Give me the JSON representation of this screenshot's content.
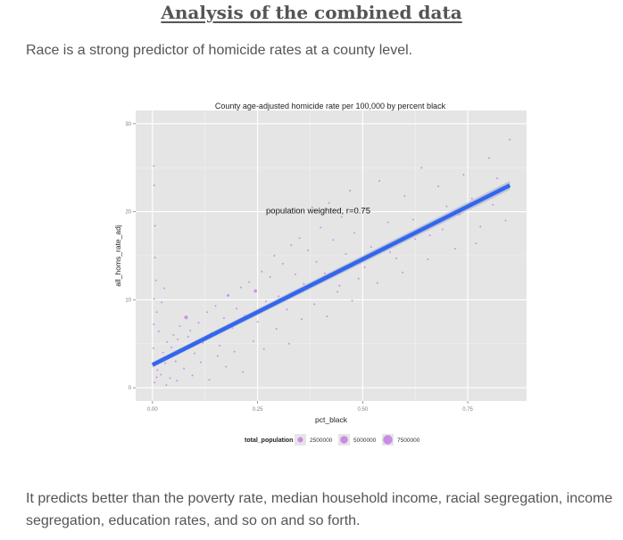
{
  "article": {
    "heading": "Analysis of the combined data",
    "intro": "Race is a strong predictor of homicide rates at a county level.",
    "outro": "It predicts better than the poverty rate, median household income, racial segregation, income segregation, education rates, and so on and so forth."
  },
  "chart_data": {
    "type": "scatter",
    "title": "County age-adjusted homicide rate per 100,000 by percent black",
    "xlabel": "pct_black",
    "ylabel": "all_homs_rate_adj",
    "xlim": [
      -0.04,
      0.89
    ],
    "ylim": [
      -1.5,
      31.5
    ],
    "x_ticks": [
      0.0,
      0.25,
      0.5,
      0.75
    ],
    "x_tick_labels": [
      "0.00",
      "0.25",
      "0.50",
      "0.75"
    ],
    "y_ticks": [
      0,
      10,
      20,
      30
    ],
    "y_tick_labels": [
      "0",
      "10",
      "20",
      "30"
    ],
    "grid": true,
    "background": "#e5e5e5",
    "point_color": "#b44ee6",
    "fit_color": "#3366ee",
    "annotation": {
      "text": "population weighted, r=0.75",
      "x": 0.27,
      "y": 19.8
    },
    "fit_line": {
      "x": [
        0.0,
        0.85
      ],
      "y": [
        2.6,
        23.0
      ]
    },
    "legend": {
      "title": "total_population",
      "position": "bottom",
      "entries": [
        {
          "label": "2500000",
          "size": 2500000
        },
        {
          "label": "5000000",
          "size": 5000000
        },
        {
          "label": "7500000",
          "size": 7500000
        }
      ]
    },
    "points": [
      [
        0.005,
        0.6,
        30000
      ],
      [
        0.01,
        1.2,
        25000
      ],
      [
        0.012,
        2.0,
        40000
      ],
      [
        0.018,
        3.1,
        60000
      ],
      [
        0.02,
        1.5,
        20000
      ],
      [
        0.025,
        4.0,
        50000
      ],
      [
        0.03,
        2.8,
        80000
      ],
      [
        0.035,
        5.2,
        30000
      ],
      [
        0.04,
        3.5,
        100000
      ],
      [
        0.045,
        4.6,
        45000
      ],
      [
        0.05,
        6.0,
        35000
      ],
      [
        0.055,
        3.0,
        70000
      ],
      [
        0.06,
        5.5,
        120000
      ],
      [
        0.065,
        7.0,
        40000
      ],
      [
        0.07,
        4.2,
        90000
      ],
      [
        0.08,
        8.0,
        1200000
      ],
      [
        0.085,
        5.8,
        60000
      ],
      [
        0.09,
        6.5,
        150000
      ],
      [
        0.1,
        3.9,
        50000
      ],
      [
        0.11,
        7.4,
        75000
      ],
      [
        0.12,
        5.1,
        95000
      ],
      [
        0.13,
        8.6,
        40000
      ],
      [
        0.14,
        6.2,
        65000
      ],
      [
        0.15,
        9.3,
        55000
      ],
      [
        0.16,
        4.8,
        30000
      ],
      [
        0.17,
        7.9,
        85000
      ],
      [
        0.18,
        10.5,
        600000
      ],
      [
        0.19,
        6.8,
        45000
      ],
      [
        0.2,
        9.0,
        70000
      ],
      [
        0.21,
        11.4,
        35000
      ],
      [
        0.22,
        8.2,
        110000
      ],
      [
        0.23,
        12.0,
        50000
      ],
      [
        0.245,
        11.0,
        900000
      ],
      [
        0.25,
        7.5,
        40000
      ],
      [
        0.26,
        13.2,
        60000
      ],
      [
        0.27,
        9.8,
        75000
      ],
      [
        0.28,
        12.6,
        30000
      ],
      [
        0.29,
        15.0,
        45000
      ],
      [
        0.3,
        10.4,
        90000
      ],
      [
        0.31,
        14.1,
        55000
      ],
      [
        0.32,
        8.9,
        35000
      ],
      [
        0.33,
        16.2,
        40000
      ],
      [
        0.34,
        12.9,
        65000
      ],
      [
        0.35,
        17.0,
        30000
      ],
      [
        0.36,
        11.8,
        80000
      ],
      [
        0.37,
        15.6,
        50000
      ],
      [
        0.38,
        20.5,
        45000
      ],
      [
        0.39,
        14.3,
        35000
      ],
      [
        0.4,
        18.2,
        60000
      ],
      [
        0.41,
        13.0,
        40000
      ],
      [
        0.42,
        21.0,
        55000
      ],
      [
        0.43,
        16.8,
        30000
      ],
      [
        0.44,
        10.9,
        70000
      ],
      [
        0.45,
        19.4,
        45000
      ],
      [
        0.46,
        15.2,
        35000
      ],
      [
        0.47,
        22.4,
        50000
      ],
      [
        0.48,
        17.6,
        40000
      ],
      [
        0.49,
        12.4,
        30000
      ],
      [
        0.5,
        20.1,
        60000
      ],
      [
        0.52,
        16.0,
        35000
      ],
      [
        0.54,
        23.5,
        25000
      ],
      [
        0.56,
        18.8,
        45000
      ],
      [
        0.58,
        14.7,
        30000
      ],
      [
        0.6,
        21.8,
        40000
      ],
      [
        0.62,
        19.1,
        35000
      ],
      [
        0.64,
        25.0,
        20000
      ],
      [
        0.66,
        17.3,
        30000
      ],
      [
        0.68,
        22.9,
        25000
      ],
      [
        0.7,
        20.6,
        35000
      ],
      [
        0.72,
        15.8,
        30000
      ],
      [
        0.74,
        24.2,
        25000
      ],
      [
        0.76,
        21.5,
        20000
      ],
      [
        0.78,
        18.3,
        30000
      ],
      [
        0.8,
        26.1,
        20000
      ],
      [
        0.82,
        23.8,
        25000
      ],
      [
        0.85,
        28.2,
        20000
      ],
      [
        0.002,
        4.5,
        20000
      ],
      [
        0.003,
        7.2,
        15000
      ],
      [
        0.004,
        10.1,
        25000
      ],
      [
        0.006,
        14.8,
        15000
      ],
      [
        0.004,
        23.0,
        10000
      ],
      [
        0.003,
        25.2,
        10000
      ],
      [
        0.006,
        18.4,
        15000
      ],
      [
        0.008,
        12.2,
        20000
      ],
      [
        0.01,
        8.6,
        30000
      ],
      [
        0.015,
        6.4,
        20000
      ],
      [
        0.022,
        9.7,
        25000
      ],
      [
        0.028,
        11.3,
        20000
      ],
      [
        0.033,
        0.3,
        15000
      ],
      [
        0.042,
        1.1,
        20000
      ],
      [
        0.058,
        0.8,
        25000
      ],
      [
        0.075,
        2.2,
        30000
      ],
      [
        0.095,
        1.4,
        20000
      ],
      [
        0.115,
        2.9,
        25000
      ],
      [
        0.135,
        0.9,
        15000
      ],
      [
        0.155,
        3.6,
        20000
      ],
      [
        0.175,
        2.4,
        25000
      ],
      [
        0.195,
        4.1,
        20000
      ],
      [
        0.215,
        1.8,
        15000
      ],
      [
        0.24,
        5.3,
        20000
      ],
      [
        0.265,
        4.4,
        25000
      ],
      [
        0.295,
        6.7,
        20000
      ],
      [
        0.325,
        5.0,
        15000
      ],
      [
        0.355,
        7.8,
        20000
      ],
      [
        0.385,
        9.5,
        25000
      ],
      [
        0.415,
        8.1,
        20000
      ],
      [
        0.445,
        11.6,
        15000
      ],
      [
        0.475,
        9.9,
        20000
      ],
      [
        0.505,
        13.7,
        25000
      ],
      [
        0.535,
        11.9,
        20000
      ],
      [
        0.565,
        15.4,
        15000
      ],
      [
        0.595,
        13.1,
        20000
      ],
      [
        0.625,
        16.9,
        15000
      ],
      [
        0.655,
        14.6,
        20000
      ],
      [
        0.69,
        18.0,
        15000
      ],
      [
        0.73,
        19.7,
        20000
      ],
      [
        0.77,
        16.4,
        15000
      ],
      [
        0.81,
        20.8,
        20000
      ],
      [
        0.84,
        19.0,
        15000
      ]
    ]
  }
}
